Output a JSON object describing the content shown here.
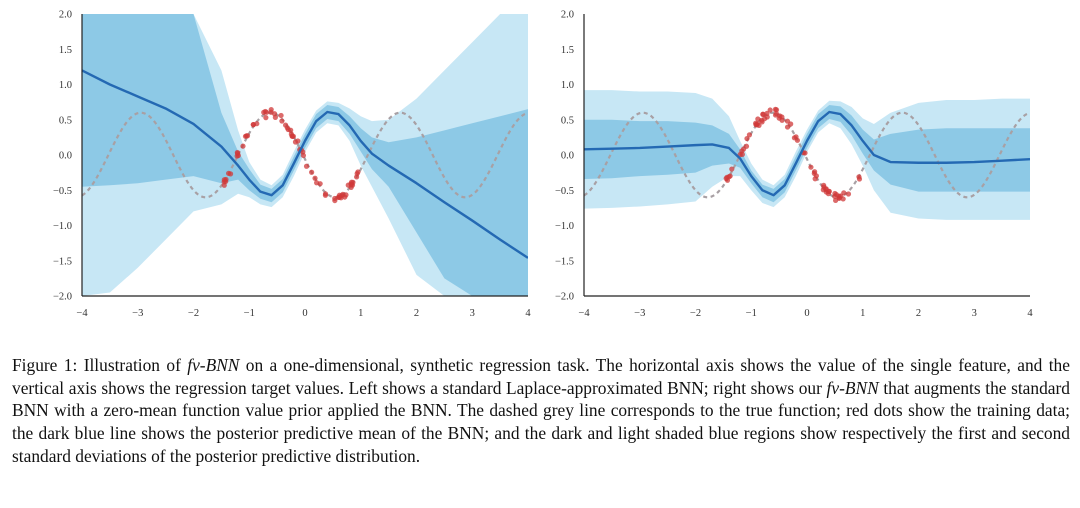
{
  "caption": {
    "label": "Figure 1:",
    "part1": "Illustration of",
    "method_name": "fv-BNN",
    "part2": "on a one-dimensional, synthetic regression task. The horizontal axis shows the value of the single feature, and the vertical axis shows the regression target values. Left shows a standard Laplace-approximated BNN; right shows our",
    "method_name_2": "fv-BNN",
    "part3": "that augments the standard BNN with a zero-mean function value prior applied the BNN. The dashed grey line corresponds to the true function; red dots show the training data; the dark blue line shows the posterior predictive mean of the BNN; and the dark and light shaded blue regions show respectively the first and second standard deviations of the posterior predictive distribution."
  },
  "colors": {
    "mean_line": "#2469b3",
    "band_1sd": "#8dc9e6",
    "band_2sd": "#c7e7f5",
    "true_function": "#a8a0a4",
    "training_data": "#d03a3a"
  },
  "chart_data": [
    {
      "type": "line",
      "panel": "left",
      "title": "",
      "xlabel": "",
      "ylabel": "",
      "xlim": [
        -4,
        4
      ],
      "ylim": [
        -2,
        2
      ],
      "x_ticks": [
        -4,
        -3,
        -2,
        -1,
        0,
        1,
        2,
        3,
        4
      ],
      "y_ticks": [
        -2.0,
        -1.5,
        -1.0,
        -0.5,
        0.0,
        0.5,
        1.0,
        1.5,
        2.0
      ],
      "x_tick_labels": [
        "−4",
        "−3",
        "−2",
        "−1",
        "0",
        "1",
        "2",
        "3",
        "4"
      ],
      "y_tick_labels": [
        "−2.0",
        "−1.5",
        "−1.0",
        "−0.5",
        "0.0",
        "0.5",
        "1.0",
        "1.5",
        "2.0"
      ],
      "x": [
        -4,
        -3.5,
        -3,
        -2.5,
        -2,
        -1.5,
        -1.2,
        -1,
        -0.8,
        -0.6,
        -0.4,
        -0.2,
        0,
        0.2,
        0.4,
        0.6,
        0.8,
        1,
        1.2,
        1.5,
        2,
        2.5,
        3,
        3.5,
        4
      ],
      "mean": [
        1.2,
        1.0,
        0.83,
        0.66,
        0.44,
        0.12,
        -0.15,
        -0.35,
        -0.52,
        -0.57,
        -0.43,
        -0.12,
        0.2,
        0.48,
        0.61,
        0.58,
        0.42,
        0.2,
        0.02,
        -0.15,
        -0.4,
        -0.67,
        -0.93,
        -1.2,
        -1.46
      ],
      "band_1sd_upper": [
        2.0,
        2.0,
        2.0,
        2.0,
        2.0,
        0.6,
        0.05,
        -0.2,
        -0.42,
        -0.48,
        -0.34,
        -0.02,
        0.3,
        0.58,
        0.71,
        0.68,
        0.55,
        0.38,
        0.25,
        0.18,
        0.25,
        0.35,
        0.45,
        0.55,
        0.65
      ],
      "band_1sd_lower": [
        -0.45,
        -0.43,
        -0.4,
        -0.35,
        -0.3,
        -0.4,
        -0.35,
        -0.5,
        -0.62,
        -0.67,
        -0.53,
        -0.22,
        0.1,
        0.38,
        0.51,
        0.48,
        0.3,
        0.05,
        -0.2,
        -0.45,
        -1.1,
        -1.75,
        -2.0,
        -2.0,
        -2.0
      ],
      "band_2sd_upper": [
        2.0,
        2.0,
        2.0,
        2.0,
        2.0,
        1.2,
        0.35,
        -0.1,
        -0.35,
        -0.43,
        -0.28,
        0.05,
        0.36,
        0.63,
        0.76,
        0.74,
        0.66,
        0.55,
        0.48,
        0.5,
        0.8,
        1.2,
        1.6,
        2.0,
        2.0
      ],
      "band_2sd_lower": [
        -2.0,
        -1.95,
        -1.6,
        -1.2,
        -0.8,
        -0.7,
        -0.55,
        -0.6,
        -0.7,
        -0.74,
        -0.6,
        -0.3,
        0.04,
        0.32,
        0.45,
        0.42,
        0.2,
        -0.15,
        -0.45,
        -0.9,
        -1.7,
        -2.0,
        -2.0,
        -2.0,
        -2.0
      ],
      "true_function": "0.6*sin(2.7*(x+1.2))",
      "training_data_x_range": [
        -1.45,
        0.95
      ],
      "training_data_noise": 0.06
    },
    {
      "type": "line",
      "panel": "right",
      "title": "",
      "xlabel": "",
      "ylabel": "",
      "xlim": [
        -4,
        4
      ],
      "ylim": [
        -2,
        2
      ],
      "x_ticks": [
        -4,
        -3,
        -2,
        -1,
        0,
        1,
        2,
        3,
        4
      ],
      "y_ticks": [
        -2.0,
        -1.5,
        -1.0,
        -0.5,
        0.0,
        0.5,
        1.0,
        1.5,
        2.0
      ],
      "x_tick_labels": [
        "−4",
        "−3",
        "−2",
        "−1",
        "0",
        "1",
        "2",
        "3",
        "4"
      ],
      "y_tick_labels": [
        "−2.0",
        "−1.5",
        "−1.0",
        "−0.5",
        "0.0",
        "0.5",
        "1.0",
        "1.5",
        "2.0"
      ],
      "x": [
        -4,
        -3.5,
        -3,
        -2.5,
        -2,
        -1.7,
        -1.4,
        -1.2,
        -1,
        -0.8,
        -0.6,
        -0.4,
        -0.2,
        0,
        0.2,
        0.4,
        0.6,
        0.8,
        1,
        1.2,
        1.5,
        2,
        2.5,
        3,
        3.5,
        4
      ],
      "mean": [
        0.08,
        0.09,
        0.1,
        0.12,
        0.14,
        0.15,
        0.1,
        -0.05,
        -0.3,
        -0.5,
        -0.57,
        -0.43,
        -0.12,
        0.2,
        0.48,
        0.61,
        0.58,
        0.42,
        0.2,
        0.0,
        -0.1,
        -0.11,
        -0.11,
        -0.1,
        -0.08,
        -0.06
      ],
      "band_1sd_upper": [
        0.5,
        0.5,
        0.48,
        0.48,
        0.46,
        0.42,
        0.3,
        0.08,
        -0.22,
        -0.42,
        -0.48,
        -0.34,
        -0.02,
        0.3,
        0.58,
        0.71,
        0.69,
        0.56,
        0.36,
        0.22,
        0.3,
        0.36,
        0.38,
        0.38,
        0.38,
        0.38
      ],
      "band_1sd_lower": [
        -0.34,
        -0.33,
        -0.3,
        -0.28,
        -0.25,
        -0.15,
        -0.12,
        -0.18,
        -0.4,
        -0.6,
        -0.67,
        -0.53,
        -0.22,
        0.1,
        0.38,
        0.51,
        0.47,
        0.28,
        0.02,
        -0.22,
        -0.42,
        -0.52,
        -0.52,
        -0.52,
        -0.52,
        -0.52
      ],
      "band_2sd_upper": [
        0.92,
        0.92,
        0.9,
        0.9,
        0.88,
        0.8,
        0.55,
        0.2,
        -0.12,
        -0.35,
        -0.43,
        -0.28,
        0.05,
        0.36,
        0.63,
        0.77,
        0.76,
        0.68,
        0.52,
        0.44,
        0.6,
        0.74,
        0.78,
        0.78,
        0.8,
        0.8
      ],
      "band_2sd_lower": [
        -0.76,
        -0.75,
        -0.73,
        -0.7,
        -0.66,
        -0.45,
        -0.3,
        -0.3,
        -0.5,
        -0.68,
        -0.74,
        -0.6,
        -0.3,
        0.04,
        0.32,
        0.45,
        0.38,
        0.15,
        -0.15,
        -0.5,
        -0.82,
        -0.9,
        -0.92,
        -0.92,
        -0.92,
        -0.92
      ],
      "true_function": "0.6*sin(2.7*(x+1.2))",
      "training_data_x_range": [
        -1.45,
        0.95
      ],
      "training_data_noise": 0.06
    }
  ]
}
